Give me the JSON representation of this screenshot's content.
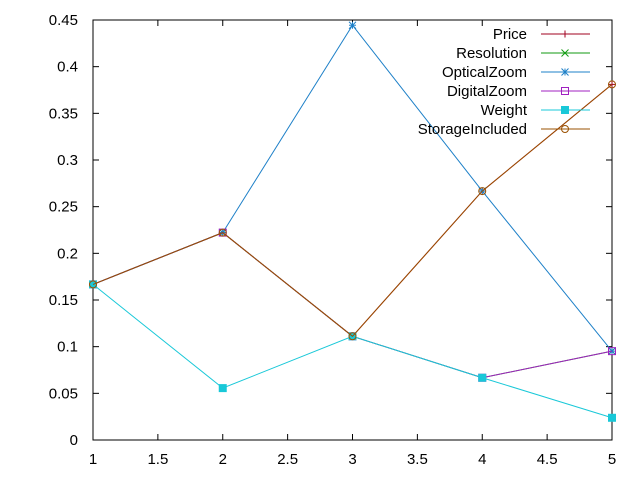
{
  "chart_data": {
    "type": "line",
    "title": "",
    "xlabel": "",
    "ylabel": "",
    "xlim": [
      1,
      5
    ],
    "ylim": [
      0,
      0.45
    ],
    "grid": false,
    "legend_position": "top-right",
    "x": [
      1,
      2,
      3,
      4,
      5
    ],
    "x_ticks": [
      "1",
      "1.5",
      "2",
      "2.5",
      "3",
      "3.5",
      "4",
      "4.5",
      "5"
    ],
    "x_tick_values": [
      1,
      1.5,
      2,
      2.5,
      3,
      3.5,
      4,
      4.5,
      5
    ],
    "y_ticks": [
      "0",
      "0.05",
      "0.1",
      "0.15",
      "0.2",
      "0.25",
      "0.3",
      "0.35",
      "0.4",
      "0.45"
    ],
    "y_tick_values": [
      0,
      0.05,
      0.1,
      0.15,
      0.2,
      0.25,
      0.3,
      0.35,
      0.4,
      0.45
    ],
    "series": [
      {
        "name": "Price",
        "color": "#a0001f",
        "marker": "plus",
        "values": [
          0.1667,
          0.2222,
          0.1111,
          0.2667,
          0.381
        ]
      },
      {
        "name": "Resolution",
        "color": "#109a10",
        "marker": "cross",
        "values": [
          0.1667,
          0.2222,
          0.1111,
          0.0667,
          0.0952
        ]
      },
      {
        "name": "OpticalZoom",
        "color": "#1e80c8",
        "marker": "star",
        "values": [
          0.1667,
          0.2222,
          0.4444,
          0.2667,
          0.0952
        ]
      },
      {
        "name": "DigitalZoom",
        "color": "#a020c0",
        "marker": "square-open",
        "values": [
          0.1667,
          0.2222,
          0.1111,
          0.0667,
          0.0952
        ]
      },
      {
        "name": "Weight",
        "color": "#19c8d8",
        "marker": "square-filled",
        "values": [
          0.1667,
          0.0556,
          0.1111,
          0.0667,
          0.0238
        ]
      },
      {
        "name": "StorageIncluded",
        "color": "#9a5000",
        "marker": "circle-open",
        "values": [
          0.1667,
          0.2222,
          0.1111,
          0.2667,
          0.381
        ]
      }
    ]
  }
}
